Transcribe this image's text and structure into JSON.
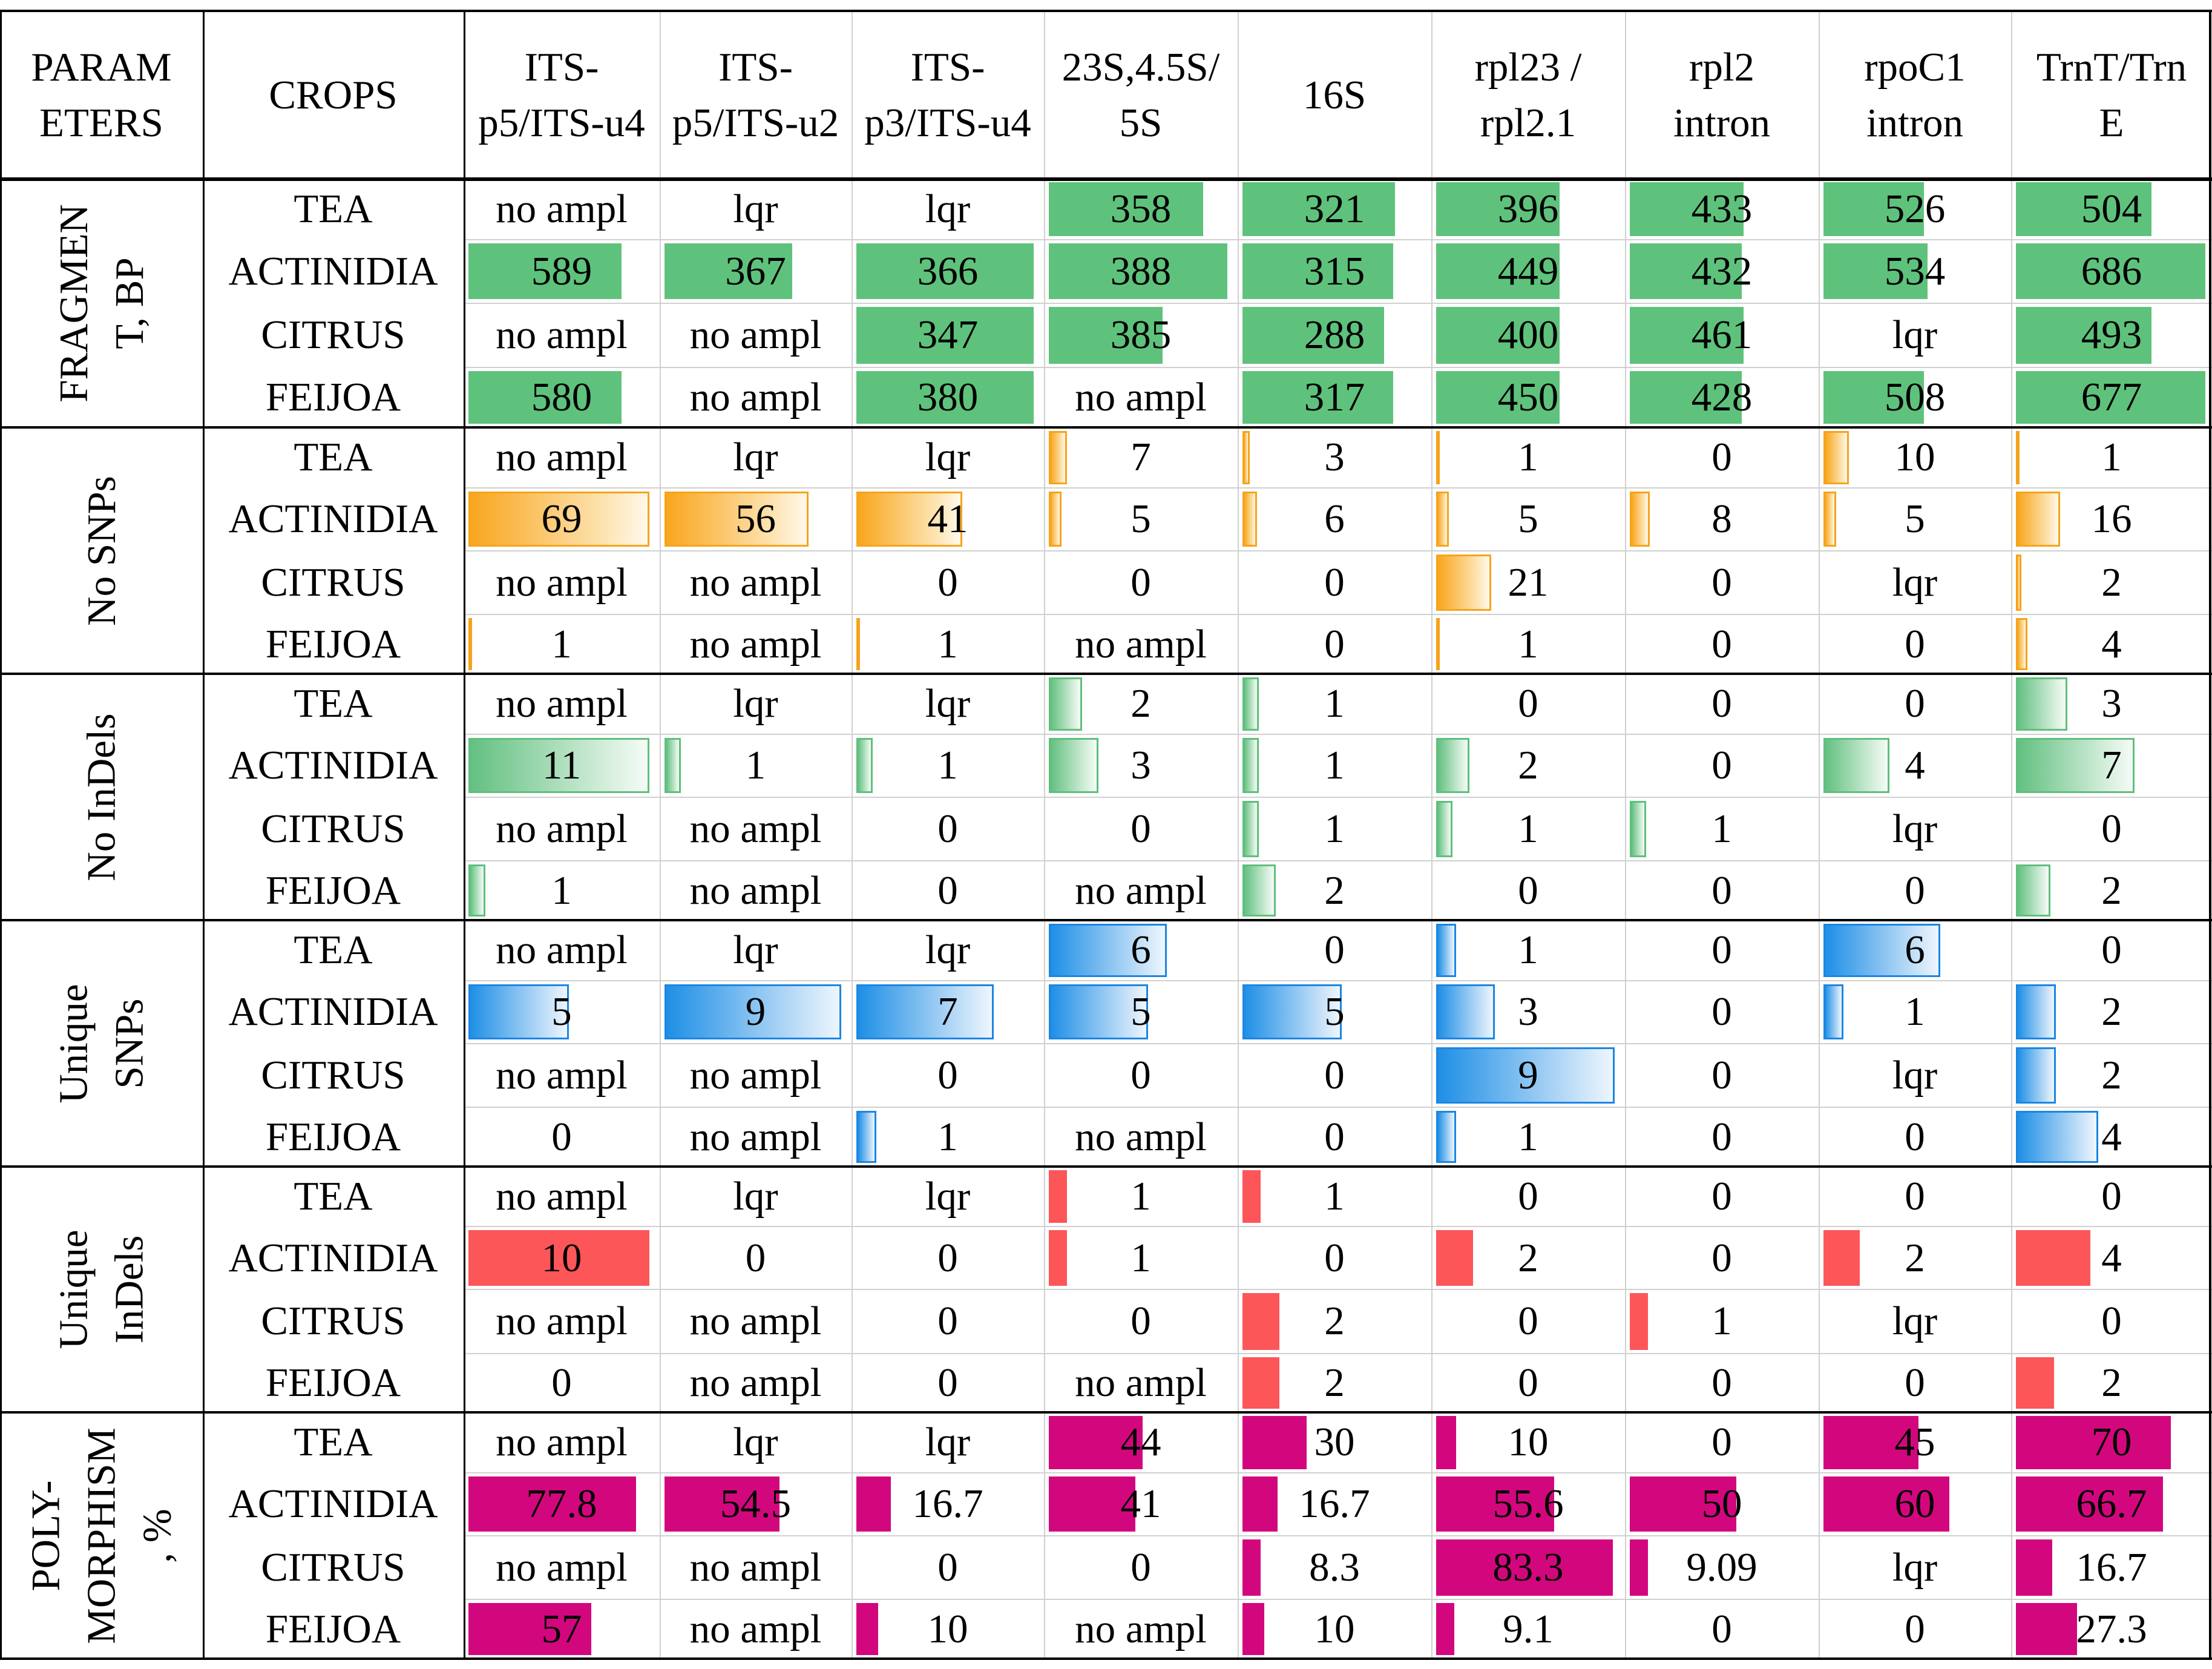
{
  "colors": {
    "fragment_bar": "#5fc27c",
    "snp_bar": "#f9a61d",
    "indel_bar": "#63c081",
    "unique_snp_bar": "#1e8fe6",
    "unique_indel_bar": "#fd5659",
    "polymorphism_bar": "#d2077e"
  },
  "header": {
    "parameters": "PARAM\nETERS",
    "crops": "CROPS",
    "markers": [
      "ITS-\np5/ITS-u4",
      "ITS-\np5/ITS-u2",
      "ITS-\np3/ITS-u4",
      "23S,4.5S/\n5S",
      "16S",
      "rpl23 /\nrpl2.1",
      "rpl2\nintron",
      "rpoC1\nintron",
      "TrnT/Trn\nE"
    ]
  },
  "sections": [
    {
      "label": "FRAGMEN\nT, BP",
      "style": "g-green",
      "rows": [
        {
          "crop": "TEA",
          "values": [
            "no ampl",
            "lqr",
            "lqr",
            "358",
            "321",
            "396",
            "433",
            "526",
            "504"
          ]
        },
        {
          "crop": "ACTINIDIA",
          "values": [
            "589",
            "367",
            "366",
            "388",
            "315",
            "449",
            "432",
            "534",
            "686"
          ]
        },
        {
          "crop": "CITRUS",
          "values": [
            "no ampl",
            "no ampl",
            "347",
            "385",
            "288",
            "400",
            "461",
            "lqr",
            "493"
          ]
        },
        {
          "crop": "FEIJOA",
          "values": [
            "580",
            "no ampl",
            "380",
            "no ampl",
            "317",
            "450",
            "428",
            "508",
            "677"
          ]
        }
      ],
      "fills": [
        [
          0,
          0,
          0,
          0.84,
          0.83,
          0.67,
          0.62,
          0.55,
          0.71
        ],
        [
          0.82,
          0.7,
          0.97,
          0.97,
          0.82,
          0.67,
          0.61,
          0.57,
          0.99
        ],
        [
          0,
          0,
          0.97,
          0.62,
          0.77,
          0.67,
          0.62,
          0,
          0.71
        ],
        [
          0.82,
          0,
          0.97,
          0,
          0.82,
          0.67,
          0.61,
          0.55,
          0.99
        ]
      ]
    },
    {
      "label": "No SNPs",
      "style": "g-orange",
      "rows": [
        {
          "crop": "TEA",
          "values": [
            "no ampl",
            "lqr",
            "lqr",
            "7",
            "3",
            "1",
            "0",
            "10",
            "1"
          ]
        },
        {
          "crop": "ACTINIDIA",
          "values": [
            "69",
            "56",
            "41",
            "5",
            "6",
            "5",
            "8",
            "5",
            "16"
          ]
        },
        {
          "crop": "CITRUS",
          "values": [
            "no ampl",
            "no ampl",
            "0",
            "0",
            "0",
            "21",
            "0",
            "lqr",
            "2"
          ]
        },
        {
          "crop": "FEIJOA",
          "values": [
            "1",
            "no ampl",
            "1",
            "no ampl",
            "0",
            "1",
            "0",
            "0",
            "4"
          ]
        }
      ],
      "fills": [
        [
          0,
          0,
          0,
          0.1,
          0.04,
          0.01,
          0,
          0.14,
          0.01
        ],
        [
          0.97,
          0.79,
          0.58,
          0.07,
          0.08,
          0.07,
          0.11,
          0.07,
          0.23
        ],
        [
          0,
          0,
          0,
          0,
          0,
          0.3,
          0,
          0,
          0.03
        ],
        [
          0.01,
          0,
          0.01,
          0,
          0,
          0.01,
          0,
          0,
          0.06
        ]
      ]
    },
    {
      "label": "No InDels",
      "style": "g-lgreen",
      "rows": [
        {
          "crop": "TEA",
          "values": [
            "no ampl",
            "lqr",
            "lqr",
            "2",
            "1",
            "0",
            "0",
            "0",
            "3"
          ]
        },
        {
          "crop": "ACTINIDIA",
          "values": [
            "11",
            "1",
            "1",
            "3",
            "1",
            "2",
            "0",
            "4",
            "7"
          ]
        },
        {
          "crop": "CITRUS",
          "values": [
            "no ampl",
            "no ampl",
            "0",
            "0",
            "1",
            "1",
            "1",
            "lqr",
            "0"
          ]
        },
        {
          "crop": "FEIJOA",
          "values": [
            "1",
            "no ampl",
            "0",
            "no ampl",
            "2",
            "0",
            "0",
            "0",
            "2"
          ]
        }
      ],
      "fills": [
        [
          0,
          0,
          0,
          0.18,
          0.09,
          0,
          0,
          0,
          0.27
        ],
        [
          0.97,
          0.09,
          0.09,
          0.27,
          0.09,
          0.18,
          0,
          0.36,
          0.62
        ],
        [
          0,
          0,
          0,
          0,
          0.09,
          0.09,
          0.09,
          0,
          0
        ],
        [
          0.09,
          0,
          0,
          0,
          0.18,
          0,
          0,
          0,
          0.18
        ]
      ]
    },
    {
      "label": "Unique\nSNPs",
      "style": "g-blue",
      "rows": [
        {
          "crop": "TEA",
          "values": [
            "no ampl",
            "lqr",
            "lqr",
            "6",
            "0",
            "1",
            "0",
            "6",
            "0"
          ]
        },
        {
          "crop": "ACTINIDIA",
          "values": [
            "5",
            "9",
            "7",
            "5",
            "5",
            "3",
            "0",
            "1",
            "2"
          ]
        },
        {
          "crop": "CITRUS",
          "values": [
            "no ampl",
            "no ampl",
            "0",
            "0",
            "0",
            "9",
            "0",
            "lqr",
            "2"
          ]
        },
        {
          "crop": "FEIJOA",
          "values": [
            "0",
            "no ampl",
            "1",
            "no ampl",
            "0",
            "1",
            "0",
            "0",
            "4"
          ]
        }
      ],
      "fills": [
        [
          0,
          0,
          0,
          0.64,
          0,
          0.11,
          0,
          0.64,
          0
        ],
        [
          0.54,
          0.97,
          0.75,
          0.54,
          0.54,
          0.32,
          0,
          0.11,
          0.21
        ],
        [
          0,
          0,
          0,
          0,
          0,
          0.97,
          0,
          0,
          0.21
        ],
        [
          0,
          0,
          0.11,
          0,
          0,
          0.11,
          0,
          0,
          0.43
        ]
      ]
    },
    {
      "label": "Unique\nInDels",
      "style": "g-red",
      "rows": [
        {
          "crop": "TEA",
          "values": [
            "no ampl",
            "lqr",
            "lqr",
            "1",
            "1",
            "0",
            "0",
            "0",
            "0"
          ]
        },
        {
          "crop": "ACTINIDIA",
          "values": [
            "10",
            "0",
            "0",
            "1",
            "0",
            "2",
            "0",
            "2",
            "4"
          ]
        },
        {
          "crop": "CITRUS",
          "values": [
            "no ampl",
            "no ampl",
            "0",
            "0",
            "2",
            "0",
            "1",
            "lqr",
            "0"
          ]
        },
        {
          "crop": "FEIJOA",
          "values": [
            "0",
            "no ampl",
            "0",
            "no ampl",
            "2",
            "0",
            "0",
            "0",
            "2"
          ]
        }
      ],
      "fills": [
        [
          0,
          0,
          0,
          0.1,
          0.1,
          0,
          0,
          0,
          0
        ],
        [
          0.97,
          0,
          0,
          0.1,
          0,
          0.2,
          0,
          0.2,
          0.39
        ],
        [
          0,
          0,
          0,
          0,
          0.2,
          0,
          0.1,
          0,
          0
        ],
        [
          0,
          0,
          0,
          0,
          0.2,
          0,
          0,
          0,
          0.2
        ]
      ]
    },
    {
      "label": "POLY-\nMORPHISM\n, %",
      "style": "g-magenta",
      "rows": [
        {
          "crop": "TEA",
          "values": [
            "no ampl",
            "lqr",
            "lqr",
            "44",
            "30",
            "10",
            "0",
            "45",
            "70"
          ]
        },
        {
          "crop": "ACTINIDIA",
          "values": [
            "77.8",
            "54.5",
            "16.7",
            "41",
            "16.7",
            "55.6",
            "50",
            "60",
            "66.7"
          ]
        },
        {
          "crop": "CITRUS",
          "values": [
            "no ampl",
            "no ampl",
            "0",
            "0",
            "8.3",
            "83.3",
            "9.09",
            "lqr",
            "16.7"
          ]
        },
        {
          "crop": "FEIJOA",
          "values": [
            "57",
            "no ampl",
            "10",
            "no ampl",
            "10",
            "9.1",
            "0",
            "0",
            "27.3"
          ]
        }
      ],
      "fills": [
        [
          0,
          0,
          0,
          0.51,
          0.35,
          0.11,
          0,
          0.52,
          0.81
        ],
        [
          0.9,
          0.63,
          0.19,
          0.47,
          0.19,
          0.64,
          0.58,
          0.69,
          0.77
        ],
        [
          0,
          0,
          0,
          0,
          0.1,
          0.96,
          0.1,
          0,
          0.19
        ],
        [
          0.66,
          0,
          0.12,
          0,
          0.12,
          0.1,
          0,
          0,
          0.32
        ]
      ]
    }
  ]
}
